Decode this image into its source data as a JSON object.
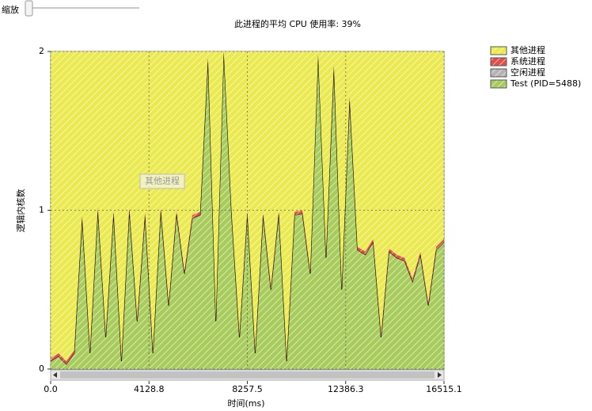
{
  "zoom_label": "缩放",
  "chart_data": {
    "type": "stacked_area",
    "title": "此进程的平均 CPU 使用率: 39%",
    "ylabel": "逻辑内核数",
    "xlabel": "时间(ms)",
    "tooltip": "其他进程",
    "x": [
      0,
      330.3,
      660.6,
      990.9,
      1321.2,
      1651.5,
      1981.8,
      2312.1,
      2642.4,
      2972.7,
      3303,
      3633.3,
      3963.6,
      4293.9,
      4624.2,
      4954.5,
      5284.8,
      5615.1,
      5945.4,
      6275.7,
      6606,
      6936.3,
      7266.6,
      7596.9,
      7927.2,
      8257.5,
      8587.8,
      8918.1,
      9248.4,
      9578.7,
      9909,
      10239.3,
      10569.6,
      10899.9,
      11230.2,
      11560.5,
      11890.8,
      12221.1,
      12551.4,
      12881.7,
      13212,
      13542.3,
      13872.6,
      14202.9,
      14533.2,
      14863.5,
      15193.8,
      15524.1,
      15854.4,
      16184.7,
      16515.1
    ],
    "series": [
      {
        "name": "Test (PID=5488)",
        "color": "#a8cc5c",
        "values": [
          0.05,
          0.08,
          0.03,
          0.1,
          0.95,
          0.1,
          1.0,
          0.2,
          0.98,
          0.05,
          1.0,
          0.3,
          0.97,
          0.1,
          1.0,
          0.4,
          0.98,
          0.6,
          0.95,
          0.97,
          1.95,
          0.3,
          2.0,
          0.97,
          0.2,
          0.98,
          0.1,
          0.97,
          0.5,
          0.98,
          0.05,
          0.97,
          0.98,
          0.6,
          1.98,
          0.7,
          1.9,
          0.5,
          1.7,
          0.75,
          0.72,
          0.8,
          0.2,
          0.74,
          0.7,
          0.68,
          0.55,
          0.72,
          0.4,
          0.75,
          0.8
        ]
      },
      {
        "name": "空闲进程",
        "color": "#b4b4b4",
        "values": [
          0,
          0,
          0,
          0,
          0,
          0,
          0,
          0,
          0,
          0,
          0,
          0,
          0,
          0,
          0,
          0,
          0,
          0,
          0,
          0,
          0,
          0,
          0,
          0,
          0,
          0,
          0,
          0,
          0,
          0,
          0,
          0,
          0,
          0,
          0,
          0,
          0,
          0,
          0,
          0,
          0,
          0,
          0,
          0,
          0,
          0,
          0,
          0,
          0,
          0,
          0
        ]
      },
      {
        "name": "系统进程",
        "color": "#e0504a",
        "values": [
          0.02,
          0.02,
          0.02,
          0.02,
          0.02,
          0.02,
          0.02,
          0.02,
          0.02,
          0.02,
          0.02,
          0.02,
          0.02,
          0.02,
          0.02,
          0.02,
          0.02,
          0.02,
          0.02,
          0.02,
          0.02,
          0.02,
          0,
          0.02,
          0.02,
          0.02,
          0.02,
          0.02,
          0.02,
          0.02,
          0.02,
          0.02,
          0.02,
          0.02,
          0,
          0.02,
          0.02,
          0.02,
          0.02,
          0.02,
          0.02,
          0.02,
          0.02,
          0.02,
          0.02,
          0.02,
          0.02,
          0.02,
          0.02,
          0.02,
          0.02
        ]
      },
      {
        "name": "其他进程",
        "color": "#eaea50",
        "values": [
          1.93,
          1.9,
          1.95,
          1.88,
          1.03,
          1.88,
          0.98,
          1.78,
          1.0,
          1.93,
          0.98,
          1.68,
          1.01,
          1.88,
          0.98,
          1.58,
          1.0,
          1.38,
          1.03,
          1.01,
          0.03,
          1.68,
          0,
          1.01,
          1.78,
          1.0,
          1.88,
          1.01,
          1.48,
          1.0,
          1.93,
          1.01,
          1.0,
          1.38,
          0.02,
          1.28,
          0.08,
          1.48,
          0.28,
          1.23,
          1.26,
          1.18,
          1.78,
          1.24,
          1.28,
          1.3,
          1.43,
          1.26,
          1.58,
          1.23,
          1.18
        ]
      }
    ],
    "xlim": [
      0,
      16515.1
    ],
    "xticks": [
      {
        "value": 0,
        "label": "0.0"
      },
      4128.8,
      8257.5,
      12386.3,
      16515.1
    ],
    "ylim": [
      0,
      2
    ],
    "yticks": [
      0,
      1,
      2
    ],
    "grid": true,
    "legend": "right"
  }
}
